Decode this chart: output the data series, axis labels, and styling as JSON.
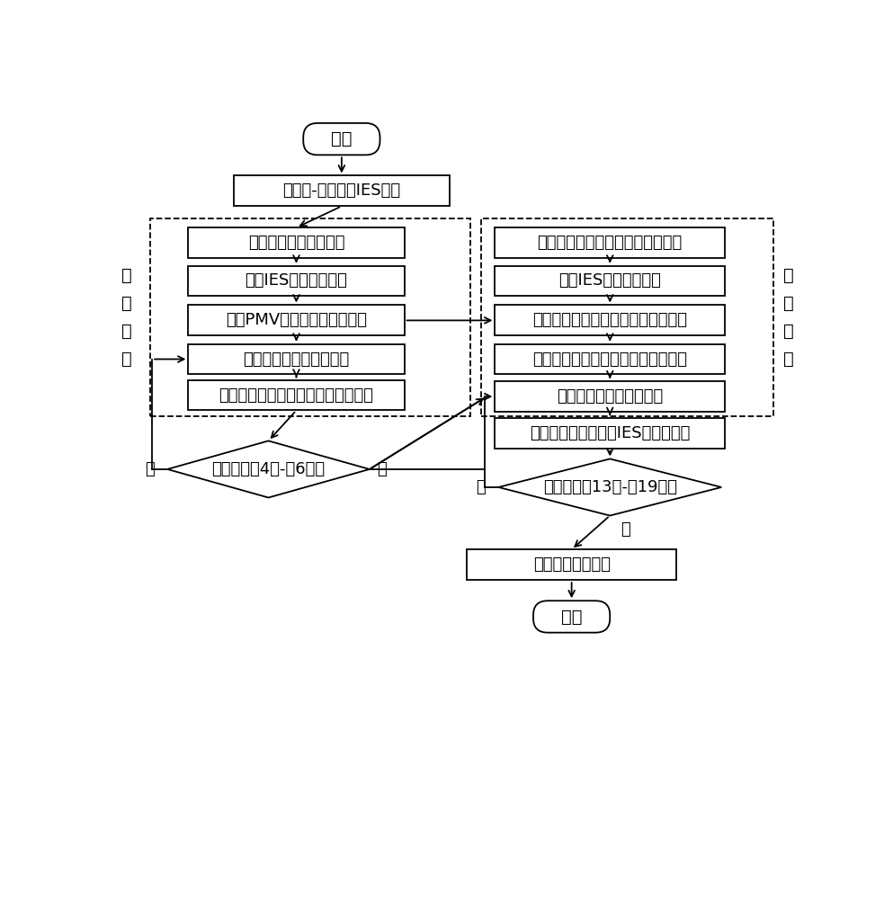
{
  "bg_color": "#ffffff",
  "line_color": "#000000",
  "box_fill": "#ffffff",
  "text_color": "#000000",
  "start_label": "开始",
  "end_label": "结束",
  "box1_label": "构建源-荷协调的IES架构",
  "left_box_labels": [
    "构建综合需求响应模型",
    "构建IES上层调度模型",
    "根据PMV指标求解最低供热量",
    "输入上层模型的初始参数",
    "求解上层模型，得到用户的用能计划"
  ],
  "right_box_labels": [
    "构建阶梯式碳交易的成本计算模型",
    "构建IES下层调度模型",
    "将上层求解的用能计划作为下层负荷",
    "将旋转备用机会约束进行确定性转换",
    "输入下层模型的初始参数",
    "求解下层模型，得到IES的最优成本"
  ],
  "left_diamond_label": "满足约束（4）-（6）？",
  "left_yes": "是",
  "left_no": "否",
  "right_diamond_label": "满足约束（13）-（19）？",
  "right_yes": "是",
  "right_no": "否",
  "output_label": "输出最优调度方案",
  "left_group_label": "上\n层\n模\n型",
  "right_group_label": "下\n层\n模\n型"
}
